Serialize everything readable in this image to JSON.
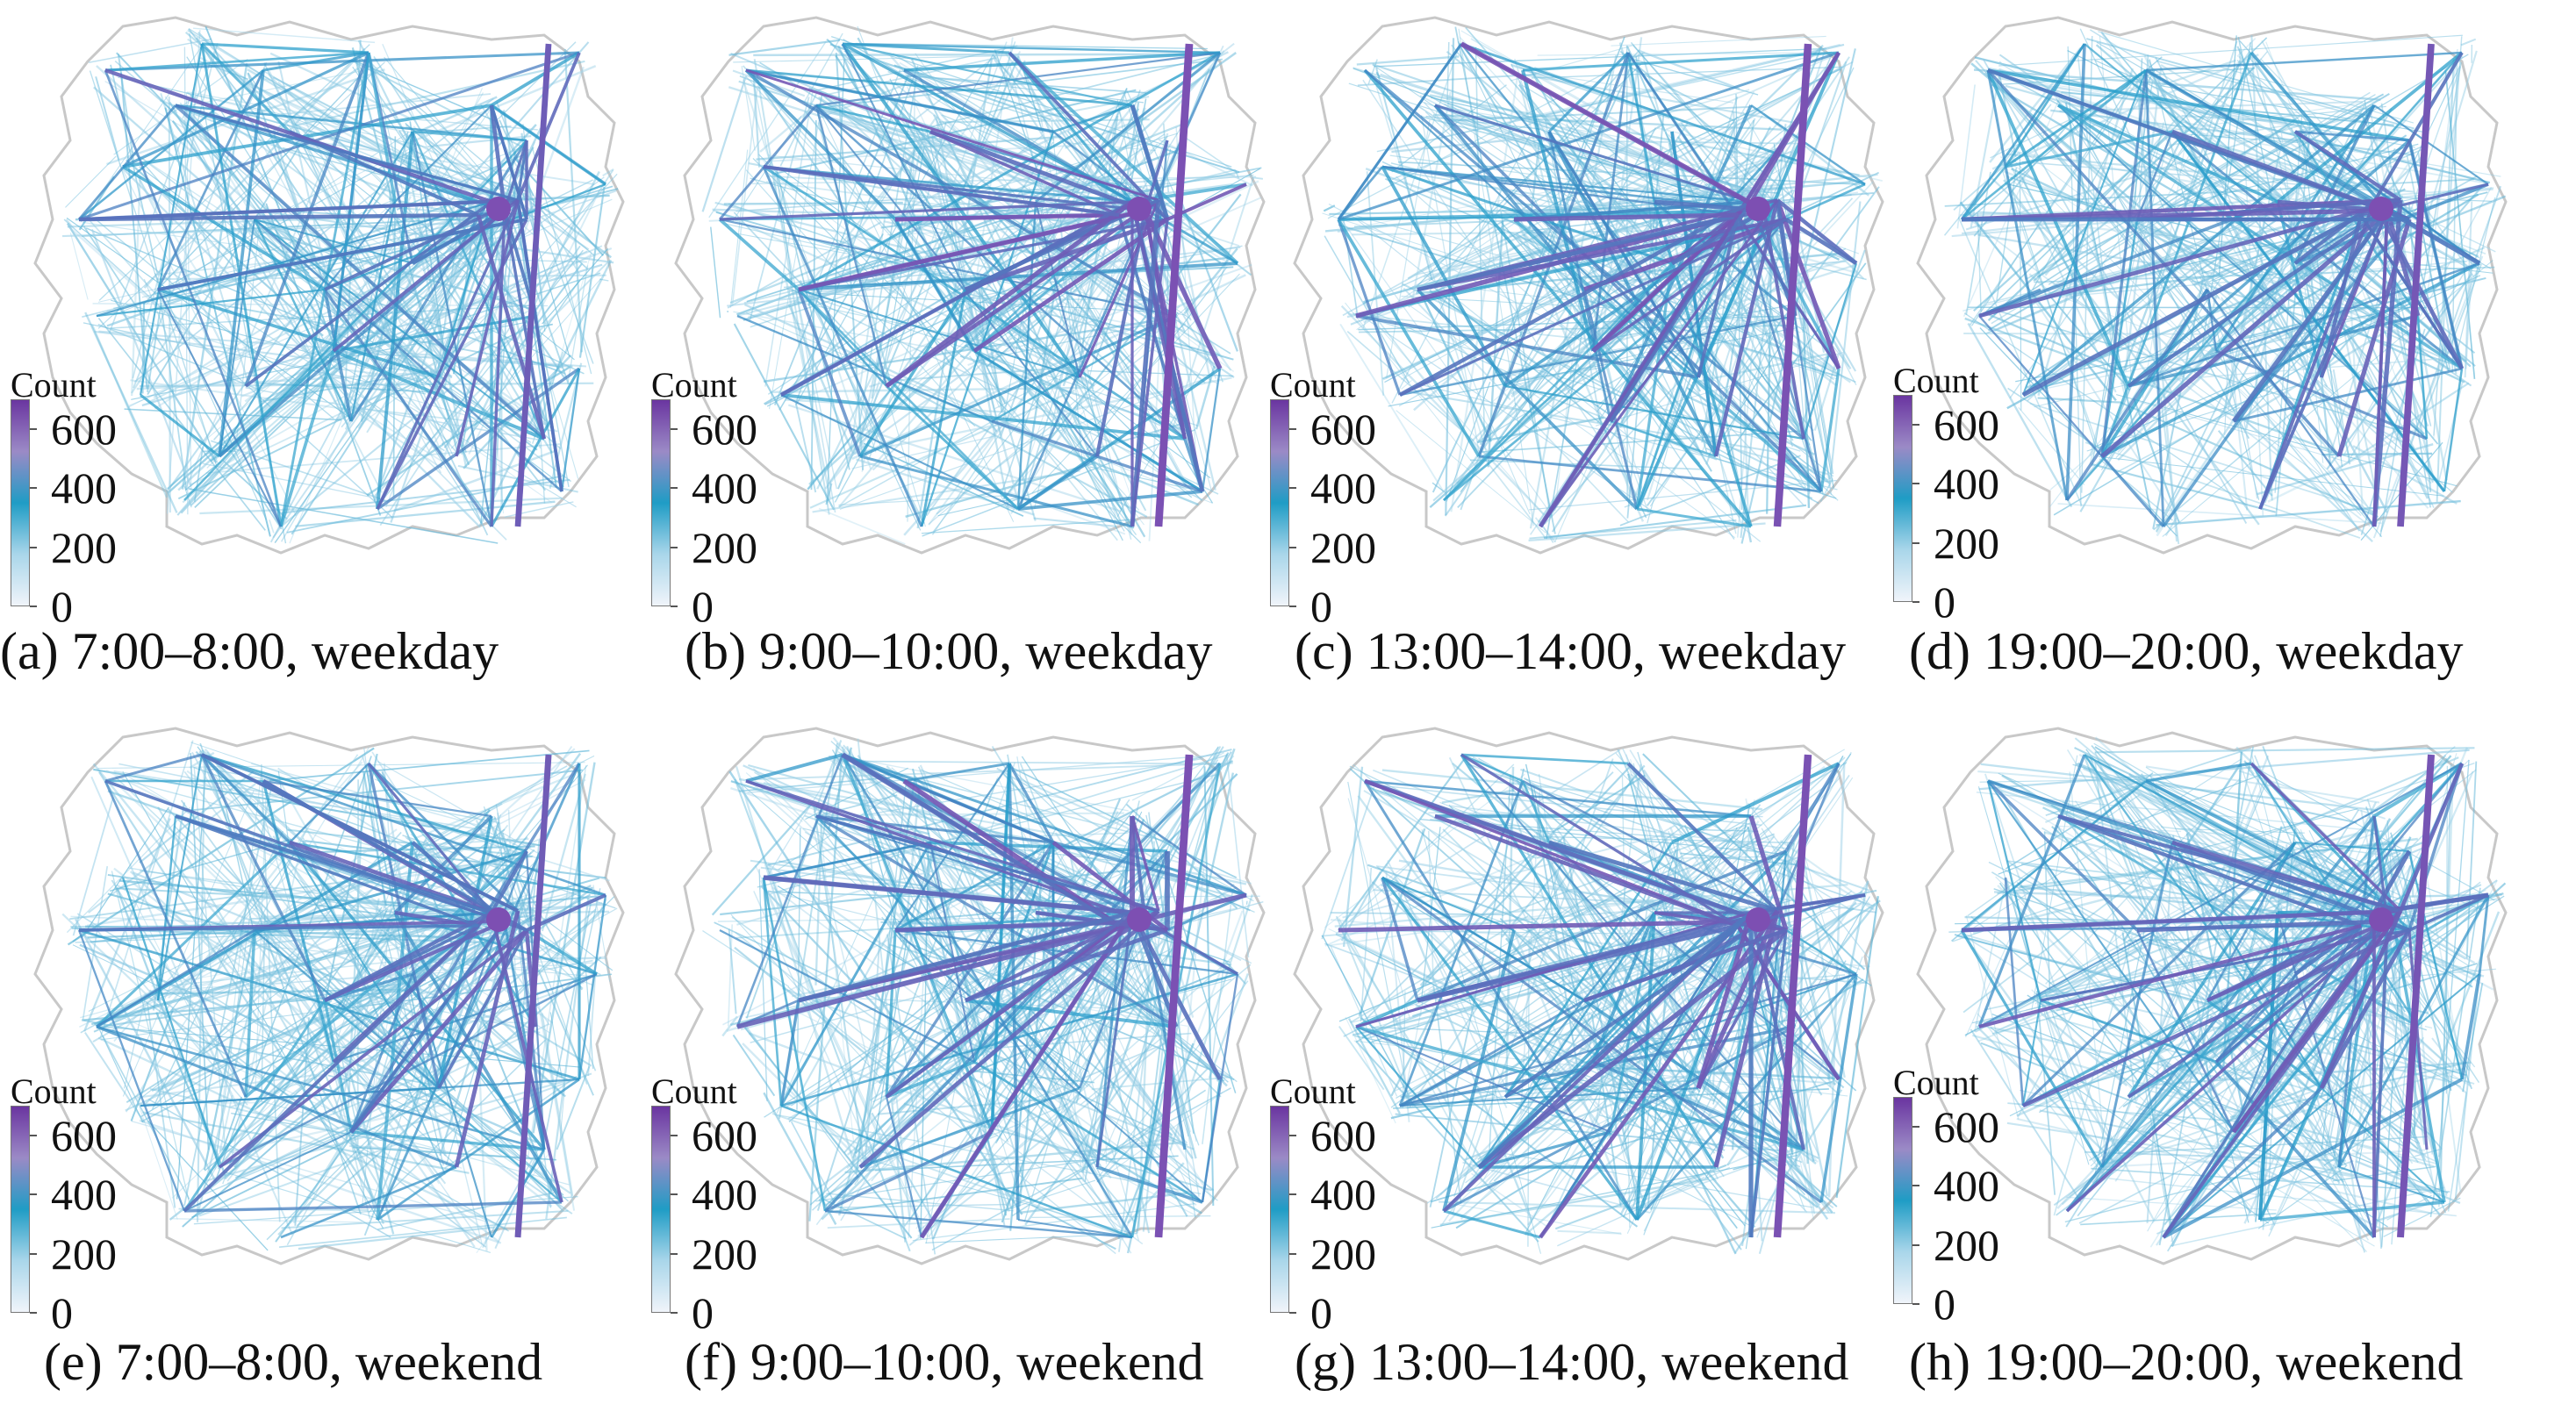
{
  "legend": {
    "title": "Count",
    "ticks": [
      "600",
      "400",
      "200",
      "0"
    ],
    "tick_values": [
      600,
      400,
      200,
      0
    ],
    "max_value": 700,
    "colors": [
      "#f0f4fa",
      "#a9d6ea",
      "#1f9cc5",
      "#9b8ac6",
      "#6a35a0"
    ]
  },
  "colors": {
    "low": "#a9d6ea",
    "mid": "#2a9fcb",
    "high": "#7d4fb2",
    "boundary": "#c8c8c8"
  },
  "panels": [
    {
      "caption": "(a) 7:00–8:00, weekday",
      "intensity": 0.55
    },
    {
      "caption": "(b) 9:00–10:00, weekday",
      "intensity": 0.95
    },
    {
      "caption": "(c) 13:00–14:00, weekday",
      "intensity": 0.9
    },
    {
      "caption": "(d) 19:00–20:00, weekday",
      "intensity": 0.75
    },
    {
      "caption": "(e) 7:00–8:00, weekend",
      "intensity": 0.6
    },
    {
      "caption": "(f) 9:00–10:00, weekend",
      "intensity": 0.95
    },
    {
      "caption": "(g) 13:00–14:00, weekend",
      "intensity": 0.9
    },
    {
      "caption": "(h) 19:00–20:00, weekend",
      "intensity": 0.8
    }
  ]
}
